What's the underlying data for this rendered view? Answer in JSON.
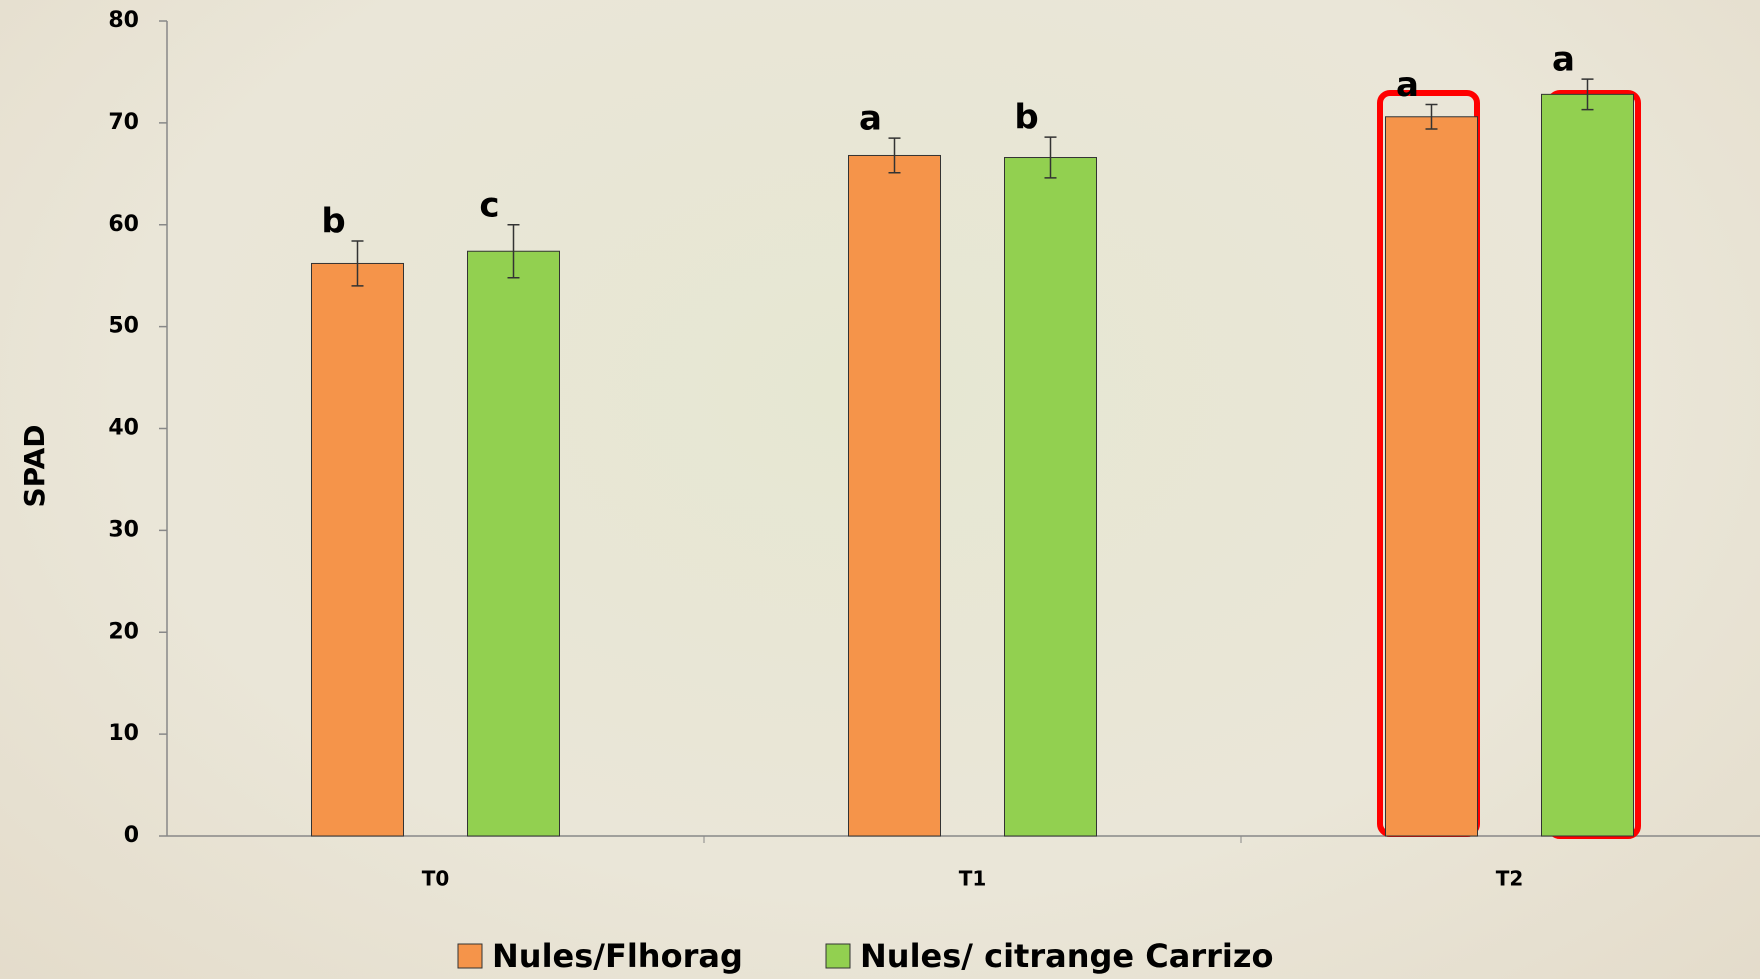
{
  "chart_data": {
    "type": "bar",
    "y_label": "SPAD",
    "categories": [
      "T0",
      "T1",
      "T2"
    ],
    "series": [
      {
        "name": "Nules/Flhorag",
        "color": "#f5944a",
        "values": [
          56.2,
          66.8,
          70.6
        ],
        "errors": [
          2.2,
          1.7,
          1.2
        ],
        "letters": [
          "b",
          "a",
          "a"
        ]
      },
      {
        "name": "Nules/ citrange Carrizo",
        "color": "#92d050",
        "values": [
          57.4,
          66.6,
          72.8
        ],
        "errors": [
          2.6,
          2.0,
          1.5
        ],
        "letters": [
          "c",
          "b",
          "a"
        ]
      }
    ],
    "ylim": [
      0,
      80
    ],
    "yticks": [
      0,
      10,
      20,
      30,
      40,
      50,
      60,
      70,
      80
    ],
    "grid": false
  }
}
